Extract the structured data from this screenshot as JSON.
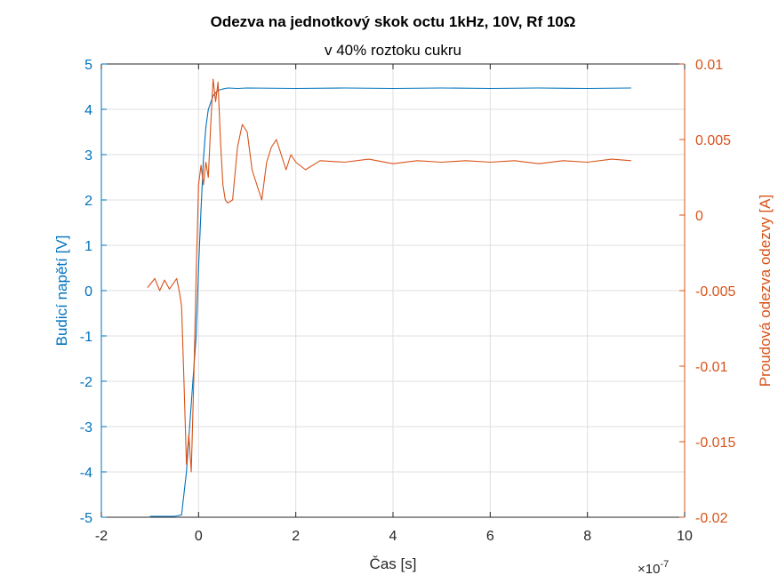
{
  "colors": {
    "left_axis": "#0072BD",
    "right_axis": "#D95319",
    "x_axis": "#262626",
    "grid": "#dfdfdf"
  },
  "chart_data": {
    "type": "line",
    "title": "Odezva na jednotkový skok octu 1kHz, 10V, Rf 10Ω",
    "subtitle": "v 40% roztoku cukru",
    "xlabel": "Čas [s]",
    "x_exponent_label": "×10",
    "x_exponent_power": "-7",
    "ylabel_left": "Budicí napětí [V]",
    "ylabel_right": "Proudová odezva odezvy [A]",
    "xlim": [
      -2e-07,
      1e-06
    ],
    "ylim_left": [
      -5,
      5
    ],
    "ylim_right": [
      -0.02,
      0.01
    ],
    "grid": true,
    "x_ticks": [
      "-2",
      "0",
      "2",
      "4",
      "6",
      "8",
      "10"
    ],
    "y_left_ticks": [
      "5",
      "4",
      "3",
      "2",
      "1",
      "0",
      "-1",
      "-2",
      "-3",
      "-4",
      "-5"
    ],
    "y_right_ticks": [
      "0.01",
      "0.005",
      "0",
      "-0.005",
      "-0.01",
      "-0.015",
      "-0.02"
    ],
    "series": [
      {
        "axis": "left",
        "color": "#0072BD",
        "x": [
          -1e-07,
          -5e-08,
          -3.5e-08,
          -2.5e-08,
          -1.5e-08,
          -5e-09,
          0.0,
          5e-09,
          1e-08,
          1.5e-08,
          2e-08,
          3e-08,
          4e-08,
          5e-08,
          6e-08,
          8e-08,
          1e-07,
          2e-07,
          3e-07,
          4e-07,
          5e-07,
          6e-07,
          7e-07,
          8e-07,
          8.9e-07
        ],
        "y": [
          -4.98,
          -4.98,
          -4.95,
          -4.0,
          -2.5,
          -1.0,
          0.5,
          1.8,
          2.9,
          3.6,
          4.0,
          4.3,
          4.42,
          4.45,
          4.47,
          4.46,
          4.47,
          4.46,
          4.47,
          4.46,
          4.47,
          4.46,
          4.47,
          4.46,
          4.47
        ]
      },
      {
        "axis": "right",
        "color": "#D95319",
        "x": [
          -1.05e-07,
          -9e-08,
          -8e-08,
          -7e-08,
          -6e-08,
          -4.5e-08,
          -4e-08,
          -3.5e-08,
          -3e-08,
          -2.5e-08,
          -2e-08,
          -1.5e-08,
          -1e-08,
          -5e-09,
          0.0,
          5e-09,
          1e-08,
          1.5e-08,
          2e-08,
          2.5e-08,
          3e-08,
          3.5e-08,
          4e-08,
          4.5e-08,
          5e-08,
          5.5e-08,
          6e-08,
          7e-08,
          8e-08,
          9e-08,
          1e-07,
          1.1e-07,
          1.2e-07,
          1.3e-07,
          1.4e-07,
          1.5e-07,
          1.6e-07,
          1.7e-07,
          1.8e-07,
          1.9e-07,
          2e-07,
          2.2e-07,
          2.5e-07,
          3e-07,
          3.5e-07,
          4e-07,
          4.5e-07,
          5e-07,
          5.5e-07,
          6e-07,
          6.5e-07,
          7e-07,
          7.5e-07,
          8e-07,
          8.5e-07,
          8.9e-07
        ],
        "y": [
          -0.0048,
          -0.0042,
          -0.005,
          -0.0043,
          -0.0049,
          -0.0042,
          -0.005,
          -0.006,
          -0.011,
          -0.0165,
          -0.0145,
          -0.017,
          -0.011,
          -0.004,
          0.002,
          0.0033,
          0.002,
          0.0035,
          0.0025,
          0.006,
          0.009,
          0.0075,
          0.0088,
          0.005,
          0.002,
          0.001,
          0.0008,
          0.001,
          0.0045,
          0.006,
          0.0055,
          0.003,
          0.002,
          0.001,
          0.0035,
          0.0045,
          0.005,
          0.004,
          0.003,
          0.004,
          0.0035,
          0.003,
          0.0036,
          0.0035,
          0.0037,
          0.0034,
          0.0036,
          0.0035,
          0.0036,
          0.0035,
          0.0036,
          0.0034,
          0.0036,
          0.0035,
          0.0037,
          0.0036
        ]
      }
    ]
  }
}
